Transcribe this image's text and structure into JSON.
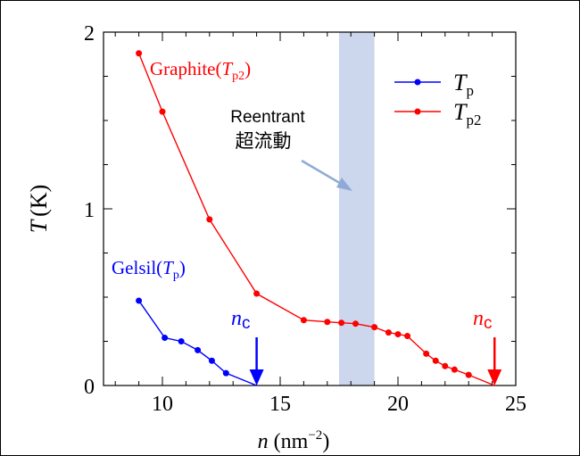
{
  "chart_data": {
    "type": "line",
    "xlabel_var": "n",
    "xlabel_unit": "(nm",
    "xlabel_exp": "−2",
    "xlabel_close": ")",
    "ylabel_var": "T",
    "ylabel_unit": "(K)",
    "xlim": [
      7.5,
      25
    ],
    "ylim": [
      0,
      2
    ],
    "xticks": [
      10,
      15,
      20,
      25
    ],
    "yticks": [
      0,
      1,
      2
    ],
    "legend_position": "top-right",
    "series": [
      {
        "name": "Tp",
        "legend_main": "T",
        "legend_sub": "p",
        "color": "#0000ff",
        "x": [
          9.0,
          10.1,
          10.8,
          11.5,
          12.1,
          12.7,
          14.0
        ],
        "y": [
          0.48,
          0.27,
          0.25,
          0.2,
          0.14,
          0.07,
          0.0
        ]
      },
      {
        "name": "Tp2",
        "legend_main": "T",
        "legend_sub": "p2",
        "color": "#ff0000",
        "x": [
          9.0,
          10.0,
          12.0,
          14.0,
          16.0,
          17.0,
          17.6,
          18.2,
          19.0,
          19.6,
          20.0,
          20.4,
          21.2,
          21.6,
          22.0,
          22.4,
          23.0,
          24.1
        ],
        "y": [
          1.88,
          1.55,
          0.94,
          0.52,
          0.37,
          0.36,
          0.355,
          0.35,
          0.33,
          0.3,
          0.29,
          0.28,
          0.18,
          0.14,
          0.11,
          0.09,
          0.06,
          0.0
        ]
      }
    ],
    "band": {
      "x_start": 17.5,
      "x_end": 19.0,
      "color": "#ccd6ec"
    },
    "annotations": {
      "graphite_label": {
        "prefix": "Graphite(",
        "var": "T",
        "sub": "p2",
        "suffix": ")"
      },
      "gelsil_label": {
        "prefix": "Gelsil(",
        "var": "T",
        "sub": "p",
        "suffix": ")"
      },
      "reentrant_line1": "Reentrant",
      "reentrant_line2": "超流動",
      "nc_blue": {
        "main": "n",
        "sub": "c",
        "x": 14.0
      },
      "nc_red": {
        "main": "n",
        "sub": "c",
        "x": 24.1
      }
    }
  }
}
